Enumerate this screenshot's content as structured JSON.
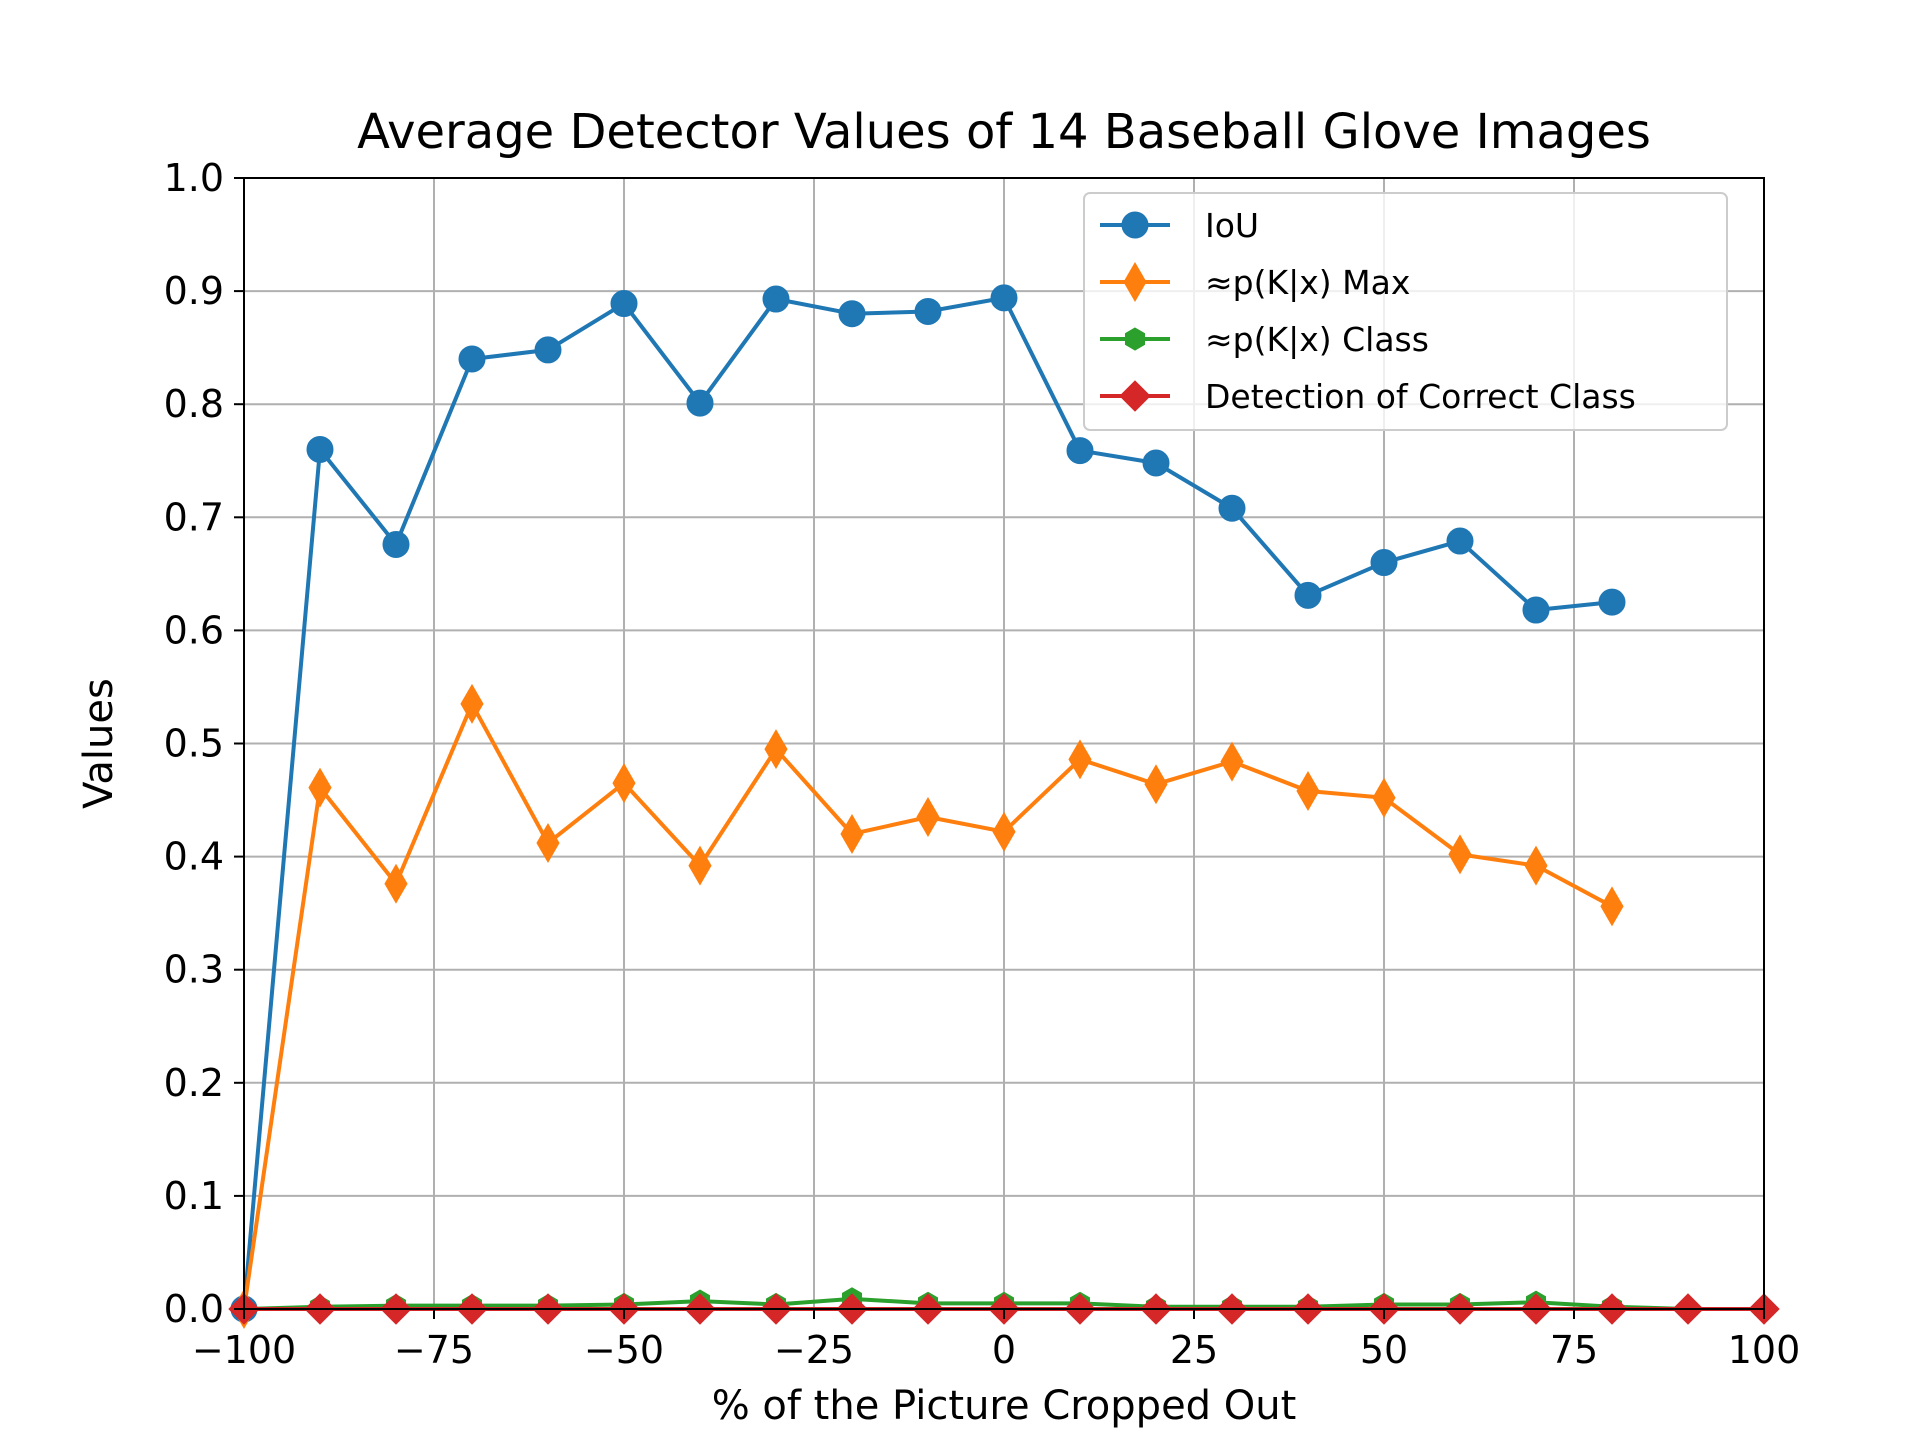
{
  "chart_data": {
    "type": "line",
    "title": "Average Detector Values of 14 Baseball Glove Images",
    "xlabel": "% of the Picture Cropped Out",
    "ylabel": "Values",
    "xlim": [
      -100,
      100
    ],
    "ylim": [
      0.0,
      1.0
    ],
    "xticks": [
      -100,
      -75,
      -50,
      -25,
      0,
      25,
      50,
      75,
      100
    ],
    "xtick_labels": [
      "−100",
      "−75",
      "−50",
      "−25",
      "0",
      "25",
      "50",
      "75",
      "100"
    ],
    "yticks": [
      0.0,
      0.1,
      0.2,
      0.3,
      0.4,
      0.5,
      0.6,
      0.7,
      0.8,
      0.9,
      1.0
    ],
    "ytick_labels": [
      "0.0",
      "0.1",
      "0.2",
      "0.3",
      "0.4",
      "0.5",
      "0.6",
      "0.7",
      "0.8",
      "0.9",
      "1.0"
    ],
    "grid": true,
    "legend_position": "top-right",
    "series": [
      {
        "name": "IoU",
        "color": "#1f77b4",
        "marker": "circle",
        "x": [
          -100,
          -90,
          -80,
          -70,
          -60,
          -50,
          -40,
          -30,
          -20,
          -10,
          0,
          10,
          20,
          30,
          40,
          50,
          60,
          70,
          80
        ],
        "y": [
          0.0,
          0.76,
          0.676,
          0.84,
          0.848,
          0.889,
          0.801,
          0.893,
          0.88,
          0.882,
          0.894,
          0.759,
          0.748,
          0.708,
          0.631,
          0.66,
          0.679,
          0.618,
          0.625
        ]
      },
      {
        "name": "≈p(K|x) Max",
        "color": "#ff7f0e",
        "marker": "thin-diamond",
        "x": [
          -100,
          -90,
          -80,
          -70,
          -60,
          -50,
          -40,
          -30,
          -20,
          -10,
          0,
          10,
          20,
          30,
          40,
          50,
          60,
          70,
          80
        ],
        "y": [
          0.0,
          0.461,
          0.376,
          0.535,
          0.412,
          0.465,
          0.392,
          0.495,
          0.42,
          0.435,
          0.422,
          0.486,
          0.464,
          0.484,
          0.458,
          0.452,
          0.402,
          0.392,
          0.356
        ]
      },
      {
        "name": "≈p(K|x) Class",
        "color": "#2ca02c",
        "marker": "hexagon",
        "x": [
          -100,
          -90,
          -80,
          -70,
          -60,
          -50,
          -40,
          -30,
          -20,
          -10,
          0,
          10,
          20,
          30,
          40,
          50,
          60,
          70,
          80,
          90,
          100
        ],
        "y": [
          0.0,
          0.002,
          0.003,
          0.003,
          0.003,
          0.004,
          0.007,
          0.004,
          0.009,
          0.005,
          0.005,
          0.005,
          0.002,
          0.002,
          0.002,
          0.004,
          0.004,
          0.006,
          0.002,
          0.0,
          0.0
        ]
      },
      {
        "name": "Detection of Correct Class",
        "color": "#d62728",
        "marker": "diamond",
        "x": [
          -100,
          -90,
          -80,
          -70,
          -60,
          -50,
          -40,
          -30,
          -20,
          -10,
          0,
          10,
          20,
          30,
          40,
          50,
          60,
          70,
          80,
          90,
          100
        ],
        "y": [
          0.0,
          0.0,
          0.0,
          0.0,
          0.0,
          0.0,
          0.0,
          0.0,
          0.0,
          0.0,
          0.0,
          0.0,
          0.0,
          0.0,
          0.0,
          0.0,
          0.0,
          0.0,
          0.0,
          0.0,
          0.0
        ]
      }
    ]
  }
}
